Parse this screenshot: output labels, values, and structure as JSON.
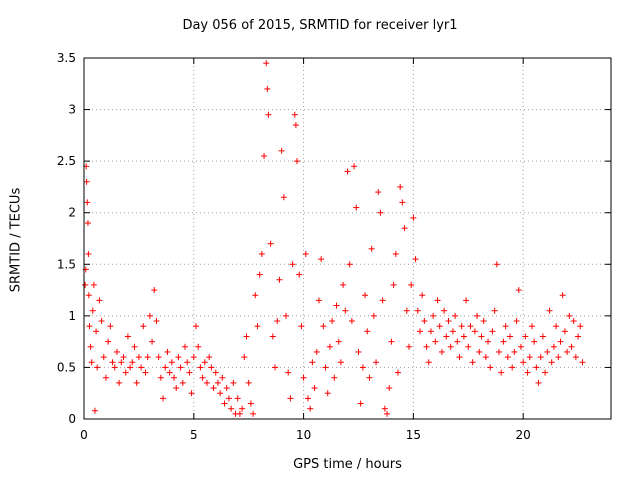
{
  "chart_data": {
    "type": "scatter",
    "title": "Day 056 of 2015, SRMTID for receiver lyr1",
    "xlabel": "GPS time / hours",
    "ylabel": "SRMTID / TECUs",
    "xlim": [
      0,
      24
    ],
    "ylim": [
      0,
      3.5
    ],
    "x_ticks": [
      0,
      5,
      10,
      15,
      20
    ],
    "x_tick_labels": [
      "0",
      "5",
      "10",
      "15",
      "20"
    ],
    "y_ticks": [
      0,
      0.5,
      1,
      1.5,
      2,
      2.5,
      3,
      3.5
    ],
    "y_tick_labels": [
      "0",
      "0.5",
      "1",
      "1.5",
      "2",
      "2.5",
      "3",
      "3.5"
    ],
    "grid": true,
    "marker": "+",
    "marker_color": "#ff0000",
    "series": [
      {
        "name": "SRMTID",
        "points": [
          [
            0.05,
            1.3
          ],
          [
            0.08,
            1.45
          ],
          [
            0.1,
            2.45
          ],
          [
            0.12,
            2.3
          ],
          [
            0.15,
            2.1
          ],
          [
            0.18,
            1.9
          ],
          [
            0.2,
            1.6
          ],
          [
            0.22,
            1.2
          ],
          [
            0.25,
            0.9
          ],
          [
            0.3,
            0.7
          ],
          [
            0.35,
            0.55
          ],
          [
            0.4,
            1.05
          ],
          [
            0.45,
            1.3
          ],
          [
            0.5,
            0.08
          ],
          [
            0.55,
            0.85
          ],
          [
            0.6,
            0.5
          ],
          [
            0.7,
            1.15
          ],
          [
            0.8,
            0.95
          ],
          [
            0.9,
            0.6
          ],
          [
            1.0,
            0.4
          ],
          [
            1.1,
            0.75
          ],
          [
            1.2,
            0.9
          ],
          [
            1.3,
            0.55
          ],
          [
            1.4,
            0.5
          ],
          [
            1.5,
            0.65
          ],
          [
            1.6,
            0.35
          ],
          [
            1.7,
            0.55
          ],
          [
            1.8,
            0.6
          ],
          [
            1.9,
            0.45
          ],
          [
            2.0,
            0.8
          ],
          [
            2.1,
            0.5
          ],
          [
            2.2,
            0.55
          ],
          [
            2.3,
            0.7
          ],
          [
            2.4,
            0.35
          ],
          [
            2.5,
            0.6
          ],
          [
            2.6,
            0.5
          ],
          [
            2.7,
            0.9
          ],
          [
            2.8,
            0.45
          ],
          [
            2.9,
            0.6
          ],
          [
            3.0,
            1.0
          ],
          [
            3.1,
            0.75
          ],
          [
            3.2,
            1.25
          ],
          [
            3.3,
            0.95
          ],
          [
            3.4,
            0.6
          ],
          [
            3.5,
            0.4
          ],
          [
            3.6,
            0.2
          ],
          [
            3.7,
            0.5
          ],
          [
            3.8,
            0.65
          ],
          [
            3.9,
            0.45
          ],
          [
            4.0,
            0.55
          ],
          [
            4.1,
            0.4
          ],
          [
            4.2,
            0.3
          ],
          [
            4.3,
            0.6
          ],
          [
            4.4,
            0.5
          ],
          [
            4.5,
            0.35
          ],
          [
            4.6,
            0.7
          ],
          [
            4.7,
            0.55
          ],
          [
            4.8,
            0.45
          ],
          [
            4.9,
            0.25
          ],
          [
            5.0,
            0.6
          ],
          [
            5.1,
            0.9
          ],
          [
            5.2,
            0.7
          ],
          [
            5.3,
            0.5
          ],
          [
            5.4,
            0.4
          ],
          [
            5.5,
            0.55
          ],
          [
            5.6,
            0.35
          ],
          [
            5.7,
            0.6
          ],
          [
            5.8,
            0.5
          ],
          [
            5.9,
            0.3
          ],
          [
            6.0,
            0.45
          ],
          [
            6.1,
            0.35
          ],
          [
            6.2,
            0.25
          ],
          [
            6.3,
            0.4
          ],
          [
            6.4,
            0.15
          ],
          [
            6.5,
            0.3
          ],
          [
            6.6,
            0.2
          ],
          [
            6.7,
            0.1
          ],
          [
            6.8,
            0.35
          ],
          [
            6.9,
            0.05
          ],
          [
            7.0,
            0.2
          ],
          [
            7.1,
            0.05
          ],
          [
            7.2,
            0.1
          ],
          [
            7.3,
            0.6
          ],
          [
            7.4,
            0.8
          ],
          [
            7.5,
            0.35
          ],
          [
            7.6,
            0.15
          ],
          [
            7.7,
            0.05
          ],
          [
            7.8,
            1.2
          ],
          [
            7.9,
            0.9
          ],
          [
            8.0,
            1.4
          ],
          [
            8.1,
            1.6
          ],
          [
            8.2,
            2.55
          ],
          [
            8.3,
            3.45
          ],
          [
            8.35,
            3.2
          ],
          [
            8.4,
            2.95
          ],
          [
            8.5,
            1.7
          ],
          [
            8.6,
            0.8
          ],
          [
            8.7,
            0.5
          ],
          [
            8.8,
            0.95
          ],
          [
            8.9,
            1.35
          ],
          [
            9.0,
            2.6
          ],
          [
            9.1,
            2.15
          ],
          [
            9.2,
            1.0
          ],
          [
            9.3,
            0.45
          ],
          [
            9.4,
            0.2
          ],
          [
            9.5,
            1.5
          ],
          [
            9.6,
            2.95
          ],
          [
            9.65,
            2.85
          ],
          [
            9.7,
            2.5
          ],
          [
            9.8,
            1.4
          ],
          [
            9.9,
            0.9
          ],
          [
            10.0,
            0.4
          ],
          [
            10.1,
            1.6
          ],
          [
            10.2,
            0.2
          ],
          [
            10.3,
            0.1
          ],
          [
            10.4,
            0.55
          ],
          [
            10.5,
            0.3
          ],
          [
            10.6,
            0.65
          ],
          [
            10.7,
            1.15
          ],
          [
            10.8,
            1.55
          ],
          [
            10.9,
            0.9
          ],
          [
            11.0,
            0.5
          ],
          [
            11.1,
            0.25
          ],
          [
            11.2,
            0.7
          ],
          [
            11.3,
            0.95
          ],
          [
            11.4,
            0.4
          ],
          [
            11.5,
            1.1
          ],
          [
            11.6,
            0.75
          ],
          [
            11.7,
            0.55
          ],
          [
            11.8,
            1.3
          ],
          [
            11.9,
            1.05
          ],
          [
            12.0,
            2.4
          ],
          [
            12.1,
            1.5
          ],
          [
            12.2,
            0.95
          ],
          [
            12.3,
            2.45
          ],
          [
            12.4,
            2.05
          ],
          [
            12.5,
            0.65
          ],
          [
            12.6,
            0.15
          ],
          [
            12.7,
            0.5
          ],
          [
            12.8,
            1.2
          ],
          [
            12.9,
            0.85
          ],
          [
            13.0,
            0.4
          ],
          [
            13.1,
            1.65
          ],
          [
            13.2,
            1.0
          ],
          [
            13.3,
            0.55
          ],
          [
            13.4,
            2.2
          ],
          [
            13.5,
            2.0
          ],
          [
            13.6,
            1.15
          ],
          [
            13.7,
            0.1
          ],
          [
            13.8,
            0.05
          ],
          [
            13.9,
            0.3
          ],
          [
            14.0,
            0.75
          ],
          [
            14.1,
            1.3
          ],
          [
            14.2,
            1.6
          ],
          [
            14.3,
            0.45
          ],
          [
            14.4,
            2.25
          ],
          [
            14.5,
            2.1
          ],
          [
            14.6,
            1.85
          ],
          [
            14.7,
            1.05
          ],
          [
            14.8,
            0.7
          ],
          [
            14.9,
            1.3
          ],
          [
            15.0,
            1.95
          ],
          [
            15.1,
            1.55
          ],
          [
            15.2,
            1.05
          ],
          [
            15.3,
            0.85
          ],
          [
            15.4,
            1.2
          ],
          [
            15.5,
            0.95
          ],
          [
            15.6,
            0.7
          ],
          [
            15.7,
            0.55
          ],
          [
            15.8,
            0.85
          ],
          [
            15.9,
            1.0
          ],
          [
            16.0,
            0.75
          ],
          [
            16.1,
            1.15
          ],
          [
            16.2,
            0.9
          ],
          [
            16.3,
            0.65
          ],
          [
            16.4,
            1.05
          ],
          [
            16.5,
            0.8
          ],
          [
            16.6,
            0.95
          ],
          [
            16.7,
            0.7
          ],
          [
            16.8,
            0.85
          ],
          [
            16.9,
            1.0
          ],
          [
            17.0,
            0.75
          ],
          [
            17.1,
            0.6
          ],
          [
            17.2,
            0.9
          ],
          [
            17.3,
            0.8
          ],
          [
            17.4,
            1.15
          ],
          [
            17.5,
            0.7
          ],
          [
            17.6,
            0.9
          ],
          [
            17.7,
            0.55
          ],
          [
            17.8,
            0.85
          ],
          [
            17.9,
            1.0
          ],
          [
            18.0,
            0.65
          ],
          [
            18.1,
            0.8
          ],
          [
            18.2,
            0.95
          ],
          [
            18.3,
            0.6
          ],
          [
            18.4,
            0.75
          ],
          [
            18.5,
            0.5
          ],
          [
            18.6,
            0.85
          ],
          [
            18.7,
            1.05
          ],
          [
            18.8,
            1.5
          ],
          [
            18.9,
            0.65
          ],
          [
            19.0,
            0.45
          ],
          [
            19.1,
            0.75
          ],
          [
            19.2,
            0.9
          ],
          [
            19.3,
            0.6
          ],
          [
            19.4,
            0.8
          ],
          [
            19.5,
            0.5
          ],
          [
            19.6,
            0.65
          ],
          [
            19.7,
            0.95
          ],
          [
            19.8,
            1.25
          ],
          [
            19.9,
            0.7
          ],
          [
            20.0,
            0.55
          ],
          [
            20.1,
            0.8
          ],
          [
            20.2,
            0.45
          ],
          [
            20.3,
            0.6
          ],
          [
            20.4,
            0.9
          ],
          [
            20.5,
            0.75
          ],
          [
            20.6,
            0.5
          ],
          [
            20.7,
            0.35
          ],
          [
            20.8,
            0.6
          ],
          [
            20.9,
            0.8
          ],
          [
            21.0,
            0.45
          ],
          [
            21.1,
            0.65
          ],
          [
            21.2,
            1.05
          ],
          [
            21.3,
            0.55
          ],
          [
            21.4,
            0.7
          ],
          [
            21.5,
            0.9
          ],
          [
            21.6,
            0.6
          ],
          [
            21.7,
            0.75
          ],
          [
            21.8,
            1.2
          ],
          [
            21.9,
            0.85
          ],
          [
            22.0,
            0.65
          ],
          [
            22.1,
            1.0
          ],
          [
            22.2,
            0.7
          ],
          [
            22.3,
            0.95
          ],
          [
            22.4,
            0.6
          ],
          [
            22.5,
            0.8
          ],
          [
            22.6,
            0.9
          ],
          [
            22.7,
            0.55
          ]
        ]
      }
    ]
  }
}
